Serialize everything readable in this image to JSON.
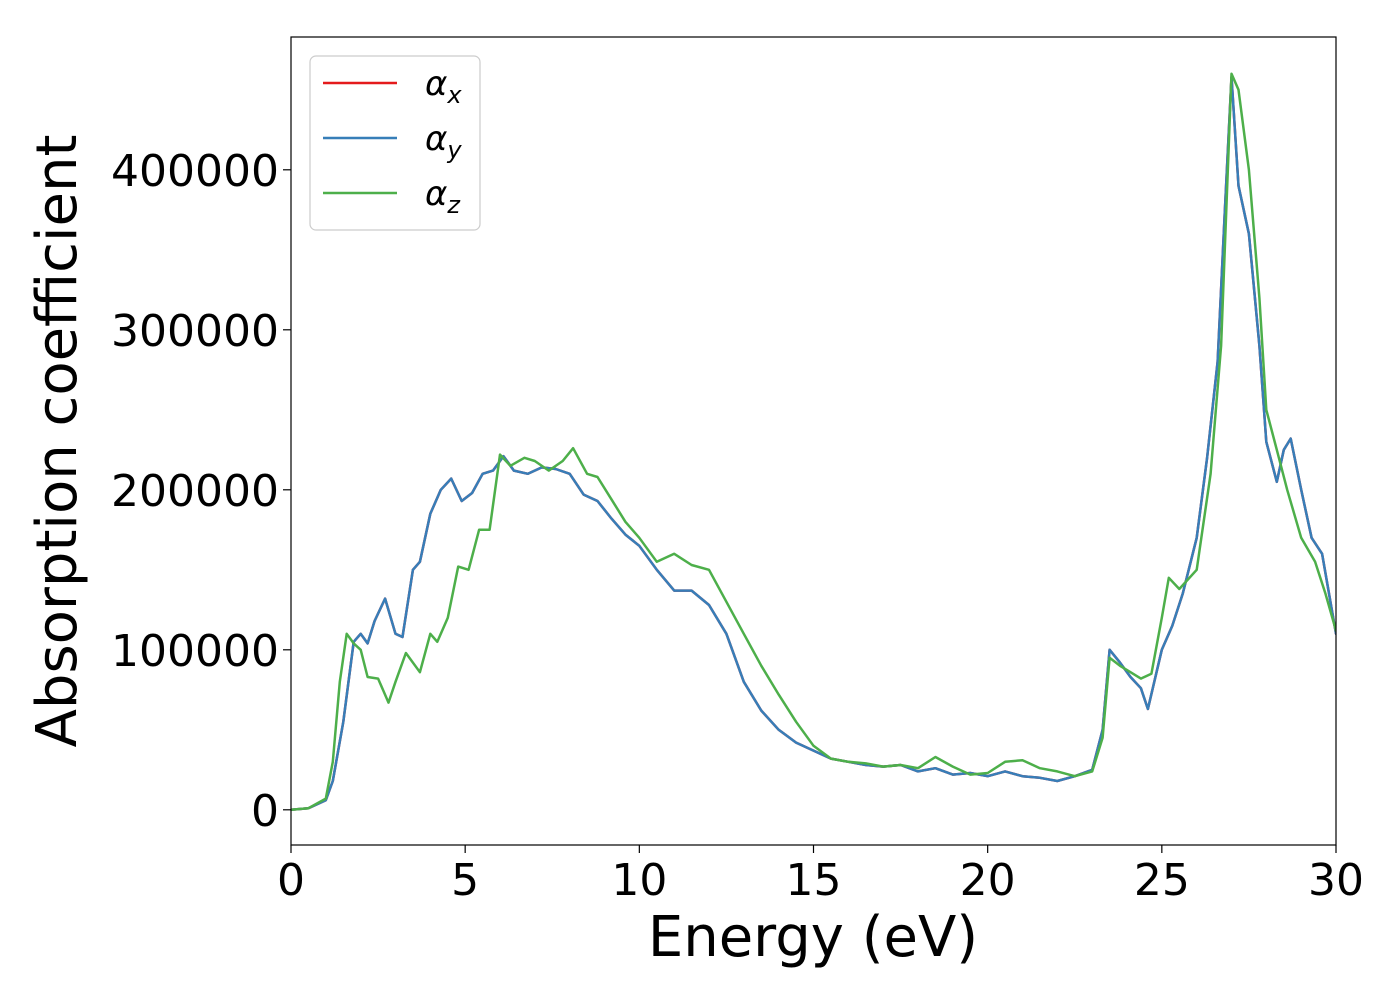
{
  "chart_data": {
    "type": "line",
    "title": "",
    "xlabel": "Energy (eV)",
    "ylabel": "Absorption coefficient",
    "xlim": [
      0,
      30
    ],
    "ylim": [
      -22000,
      483000
    ],
    "xticks": [
      0,
      5,
      10,
      15,
      20,
      25,
      30
    ],
    "yticks": [
      0,
      100000,
      200000,
      300000,
      400000
    ],
    "grid": false,
    "legend_position": "top-left",
    "series": [
      {
        "name": "α",
        "subscript": "x",
        "color": "#e41a1c",
        "x": [
          0,
          0.5,
          1.0,
          1.2,
          1.5,
          1.8,
          2.0,
          2.2,
          2.4,
          2.7,
          3.0,
          3.2,
          3.5,
          3.7,
          4.0,
          4.3,
          4.6,
          4.9,
          5.2,
          5.5,
          5.8,
          6.1,
          6.4,
          6.8,
          7.2,
          7.6,
          8.0,
          8.4,
          8.8,
          9.2,
          9.6,
          10.0,
          10.5,
          11.0,
          11.5,
          12.0,
          12.5,
          13.0,
          13.5,
          14.0,
          14.5,
          15.0,
          15.5,
          16.0,
          16.5,
          17.0,
          17.5,
          18.0,
          18.5,
          19.0,
          19.5,
          20.0,
          20.5,
          21.0,
          21.5,
          22.0,
          22.5,
          23.0,
          23.3,
          23.5,
          23.8,
          24.1,
          24.4,
          24.6,
          25.0,
          25.3,
          25.6,
          26.0,
          26.3,
          26.6,
          26.8,
          27.0,
          27.2,
          27.5,
          27.8,
          28.0,
          28.3,
          28.5,
          28.7,
          29.0,
          29.3,
          29.6,
          30.0
        ],
        "y": [
          0,
          1000,
          6000,
          18000,
          55000,
          105000,
          110000,
          104000,
          118000,
          132000,
          110000,
          108000,
          150000,
          155000,
          185000,
          200000,
          207000,
          193000,
          198000,
          210000,
          212000,
          221000,
          212000,
          210000,
          214000,
          213000,
          210000,
          197000,
          193000,
          182000,
          172000,
          165000,
          150000,
          137000,
          137000,
          128000,
          110000,
          80000,
          62000,
          50000,
          42000,
          37000,
          32000,
          30000,
          28000,
          27000,
          28000,
          24000,
          26000,
          22000,
          23000,
          21000,
          24000,
          21000,
          20000,
          18000,
          21000,
          25000,
          50000,
          100000,
          92000,
          83000,
          76000,
          63000,
          100000,
          115000,
          135000,
          170000,
          220000,
          280000,
          370000,
          458000,
          390000,
          360000,
          290000,
          230000,
          205000,
          225000,
          232000,
          200000,
          170000,
          160000,
          110000
        ]
      },
      {
        "name": "α",
        "subscript": "y",
        "color": "#377eb8",
        "x": [
          0,
          0.5,
          1.0,
          1.2,
          1.5,
          1.8,
          2.0,
          2.2,
          2.4,
          2.7,
          3.0,
          3.2,
          3.5,
          3.7,
          4.0,
          4.3,
          4.6,
          4.9,
          5.2,
          5.5,
          5.8,
          6.1,
          6.4,
          6.8,
          7.2,
          7.6,
          8.0,
          8.4,
          8.8,
          9.2,
          9.6,
          10.0,
          10.5,
          11.0,
          11.5,
          12.0,
          12.5,
          13.0,
          13.5,
          14.0,
          14.5,
          15.0,
          15.5,
          16.0,
          16.5,
          17.0,
          17.5,
          18.0,
          18.5,
          19.0,
          19.5,
          20.0,
          20.5,
          21.0,
          21.5,
          22.0,
          22.5,
          23.0,
          23.3,
          23.5,
          23.8,
          24.1,
          24.4,
          24.6,
          25.0,
          25.3,
          25.6,
          26.0,
          26.3,
          26.6,
          26.8,
          27.0,
          27.2,
          27.5,
          27.8,
          28.0,
          28.3,
          28.5,
          28.7,
          29.0,
          29.3,
          29.6,
          30.0
        ],
        "y": [
          0,
          1000,
          6000,
          18000,
          55000,
          105000,
          110000,
          104000,
          118000,
          132000,
          110000,
          108000,
          150000,
          155000,
          185000,
          200000,
          207000,
          193000,
          198000,
          210000,
          212000,
          221000,
          212000,
          210000,
          214000,
          213000,
          210000,
          197000,
          193000,
          182000,
          172000,
          165000,
          150000,
          137000,
          137000,
          128000,
          110000,
          80000,
          62000,
          50000,
          42000,
          37000,
          32000,
          30000,
          28000,
          27000,
          28000,
          24000,
          26000,
          22000,
          23000,
          21000,
          24000,
          21000,
          20000,
          18000,
          21000,
          25000,
          50000,
          100000,
          92000,
          83000,
          76000,
          63000,
          100000,
          115000,
          135000,
          170000,
          220000,
          280000,
          370000,
          458000,
          390000,
          360000,
          290000,
          230000,
          205000,
          225000,
          232000,
          200000,
          170000,
          160000,
          110000
        ]
      },
      {
        "name": "α",
        "subscript": "z",
        "color": "#4daf4a",
        "x": [
          0,
          0.5,
          1.0,
          1.2,
          1.4,
          1.6,
          1.8,
          2.0,
          2.2,
          2.5,
          2.8,
          3.0,
          3.3,
          3.7,
          4.0,
          4.2,
          4.5,
          4.8,
          5.1,
          5.4,
          5.7,
          6.0,
          6.3,
          6.7,
          7.0,
          7.4,
          7.8,
          8.1,
          8.5,
          8.8,
          9.2,
          9.6,
          10.0,
          10.5,
          11.0,
          11.5,
          12.0,
          12.5,
          13.0,
          13.5,
          14.0,
          14.5,
          15.0,
          15.5,
          16.0,
          16.5,
          17.0,
          17.5,
          18.0,
          18.5,
          19.0,
          19.5,
          20.0,
          20.5,
          21.0,
          21.5,
          22.0,
          22.5,
          23.0,
          23.3,
          23.5,
          23.8,
          24.1,
          24.4,
          24.7,
          25.0,
          25.2,
          25.5,
          26.0,
          26.4,
          26.7,
          27.0,
          27.2,
          27.5,
          27.8,
          28.0,
          28.3,
          28.6,
          29.0,
          29.4,
          29.7,
          30.0
        ],
        "y": [
          0,
          1000,
          7000,
          30000,
          80000,
          110000,
          104000,
          100000,
          83000,
          82000,
          67000,
          80000,
          98000,
          86000,
          110000,
          105000,
          120000,
          152000,
          150000,
          175000,
          175000,
          222000,
          215000,
          220000,
          218000,
          212000,
          218000,
          226000,
          210000,
          208000,
          194000,
          180000,
          170000,
          155000,
          160000,
          153000,
          150000,
          130000,
          110000,
          90000,
          72000,
          55000,
          40000,
          32000,
          30000,
          29000,
          27000,
          28000,
          26000,
          33000,
          27000,
          22000,
          23000,
          30000,
          31000,
          26000,
          24000,
          21000,
          24000,
          45000,
          95000,
          90000,
          86000,
          82000,
          85000,
          120000,
          145000,
          138000,
          150000,
          210000,
          290000,
          460000,
          450000,
          400000,
          320000,
          250000,
          225000,
          200000,
          170000,
          155000,
          135000,
          112000
        ]
      }
    ]
  }
}
